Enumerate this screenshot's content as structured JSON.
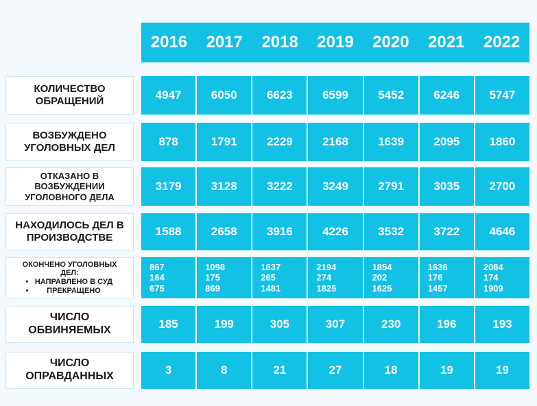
{
  "years": [
    "2016",
    "2017",
    "2018",
    "2019",
    "2020",
    "2021",
    "2022"
  ],
  "rows": [
    {
      "label_lines": [
        "КОЛИЧЕСТВО",
        "ОБРАЩЕНИЙ"
      ],
      "values": [
        "4947",
        "6050",
        "6623",
        "6599",
        "5452",
        "6246",
        "5747"
      ]
    },
    {
      "label_lines": [
        "ВОЗБУЖДЕНО",
        "УГОЛОВНЫХ ДЕЛ"
      ],
      "values": [
        "878",
        "1791",
        "2229",
        "2168",
        "1639",
        "2095",
        "1860"
      ]
    },
    {
      "label_lines": [
        "ОТКАЗАНО В",
        "ВОЗБУЖДЕНИИ",
        "УГОЛОВНОГО ДЕЛА"
      ],
      "values": [
        "3179",
        "3128",
        "3222",
        "3249",
        "2791",
        "3035",
        "2700"
      ]
    },
    {
      "label_lines": [
        "НАХОДИЛОСЬ ДЕЛ В",
        "ПРОИЗВОДСТВЕ"
      ],
      "values": [
        "1588",
        "2658",
        "3916",
        "4226",
        "3532",
        "3722",
        "4646"
      ]
    },
    {
      "label_lines": [
        "ОКОНЧЕНО УГОЛОВНЫХ",
        "ДЕЛ:"
      ],
      "label_bullets": [
        "НАПРАВЛЕНО В СУД",
        "ПРЕКРАЩЕНО"
      ],
      "values_multi": [
        [
          "867",
          "164",
          "675"
        ],
        [
          "1098",
          "175",
          "869"
        ],
        [
          "1837",
          "265",
          "1481"
        ],
        [
          "2194",
          "274",
          "1825"
        ],
        [
          "1854",
          "202",
          "1625"
        ],
        [
          "1636",
          "176",
          "1457"
        ],
        [
          "2084",
          "174",
          "1909"
        ]
      ]
    },
    {
      "label_lines": [
        "ЧИСЛО",
        "ОБВИНЯЕМЫХ"
      ],
      "values": [
        "185",
        "199",
        "305",
        "307",
        "230",
        "196",
        "193"
      ]
    },
    {
      "label_lines": [
        "ЧИСЛО",
        "ОПРАВДАННЫХ"
      ],
      "values": [
        "3",
        "8",
        "21",
        "27",
        "18",
        "19",
        "19"
      ]
    }
  ],
  "colors": {
    "accent": "#12c1e3",
    "background": "#f3f9fd",
    "label_text": "#1a1a1a"
  }
}
